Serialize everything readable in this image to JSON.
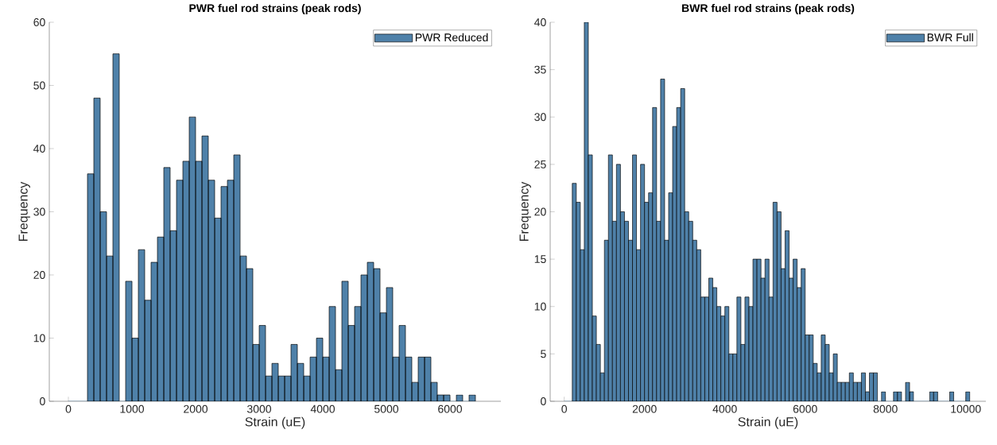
{
  "chart_data": [
    {
      "type": "histogram",
      "title": "PWR fuel rod strains (peak rods)",
      "xlabel": "Strain (uE)",
      "ylabel": "Frequency",
      "legend": "top right",
      "bins": [
        0,
        100,
        200,
        300,
        400,
        500,
        600,
        700,
        800,
        900,
        1000,
        1100,
        1200,
        1300,
        1400,
        1500,
        1600,
        1700,
        1800,
        1900,
        2000,
        2100,
        2200,
        2300,
        2400,
        2500,
        2600,
        2700,
        2800,
        2900,
        3000,
        3100,
        3200,
        3300,
        3400,
        3500,
        3600,
        3700,
        3800,
        3900,
        4000,
        4100,
        4200,
        4300,
        4400,
        4500,
        4600,
        4700,
        4800,
        4900,
        5000,
        5100,
        5200,
        5300,
        5400,
        5500,
        5600,
        5700,
        5800,
        5900,
        6000,
        6100,
        6200,
        6300,
        6400
      ],
      "series": [
        {
          "name": "PWR Reduced",
          "color": "#4f81a9",
          "values": [
            0,
            0,
            0,
            36,
            48,
            30,
            23,
            55,
            0,
            19,
            10,
            24,
            16,
            22,
            26,
            37,
            27,
            35,
            38,
            45,
            38,
            42,
            35,
            29,
            34,
            35,
            39,
            23,
            21,
            9,
            12,
            4,
            6,
            4,
            4,
            9,
            6,
            4,
            7,
            10,
            7,
            15,
            5,
            19,
            12,
            15,
            20,
            22,
            21,
            14,
            18,
            7,
            12,
            7,
            3,
            7,
            7,
            3,
            1,
            1,
            0,
            1,
            0,
            1
          ]
        }
      ],
      "xlim": [
        -300,
        6800
      ],
      "ylim": [
        0,
        60
      ],
      "xticks": [
        0,
        1000,
        2000,
        3000,
        4000,
        5000,
        6000
      ],
      "yticks": [
        0,
        10,
        20,
        30,
        40,
        50,
        60
      ]
    },
    {
      "type": "histogram",
      "title": "BWR fuel rod strains (peak rods)",
      "xlabel": "Strain (uE)",
      "ylabel": "Frequency",
      "legend": "top right",
      "bins": [
        0,
        100,
        200,
        300,
        400,
        500,
        600,
        700,
        800,
        900,
        1000,
        1100,
        1200,
        1300,
        1400,
        1500,
        1600,
        1700,
        1800,
        1900,
        2000,
        2100,
        2200,
        2300,
        2400,
        2500,
        2600,
        2700,
        2800,
        2900,
        3000,
        3100,
        3200,
        3300,
        3400,
        3500,
        3600,
        3700,
        3800,
        3900,
        4000,
        4100,
        4200,
        4300,
        4400,
        4500,
        4600,
        4700,
        4800,
        4900,
        5000,
        5100,
        5200,
        5300,
        5400,
        5500,
        5600,
        5700,
        5800,
        5900,
        6000,
        6100,
        6200,
        6300,
        6400,
        6500,
        6600,
        6700,
        6800,
        6900,
        7000,
        7100,
        7200,
        7300,
        7400,
        7500,
        7600,
        7700,
        7800,
        7900,
        8000,
        8100,
        8200,
        8300,
        8400,
        8500,
        8600,
        8700,
        8800,
        8900,
        9000,
        9100,
        9200,
        9300,
        9400,
        9500,
        9600,
        9700,
        9800,
        9900,
        10000,
        10100
      ],
      "series": [
        {
          "name": "BWR Full",
          "color": "#4f81a9",
          "values": [
            0,
            0,
            23,
            21,
            16,
            40,
            26,
            9,
            6,
            3,
            17,
            26,
            19,
            25,
            20,
            19,
            17,
            26,
            16,
            25,
            21,
            22,
            31,
            19,
            34,
            17,
            22,
            29,
            31,
            33,
            20,
            19,
            17,
            16,
            11,
            11,
            13,
            12,
            10,
            9,
            10,
            5,
            5,
            11,
            6,
            11,
            10,
            15,
            15,
            13,
            15,
            11,
            21,
            20,
            14,
            18,
            13,
            15,
            12,
            14,
            7,
            7,
            4,
            3,
            7,
            6,
            3,
            5,
            2,
            2,
            2,
            3,
            2,
            2,
            3,
            1,
            3,
            3,
            0,
            1,
            0,
            0,
            1,
            1,
            0,
            2,
            1,
            0,
            0,
            0,
            0,
            1,
            1,
            0,
            0,
            0,
            1,
            0,
            0,
            0,
            1
          ]
        }
      ],
      "xlim": [
        -350,
        10500
      ],
      "ylim": [
        0,
        40
      ],
      "xticks": [
        0,
        2000,
        4000,
        6000,
        8000,
        10000
      ],
      "yticks": [
        0,
        5,
        10,
        15,
        20,
        25,
        30,
        35,
        40
      ]
    }
  ]
}
